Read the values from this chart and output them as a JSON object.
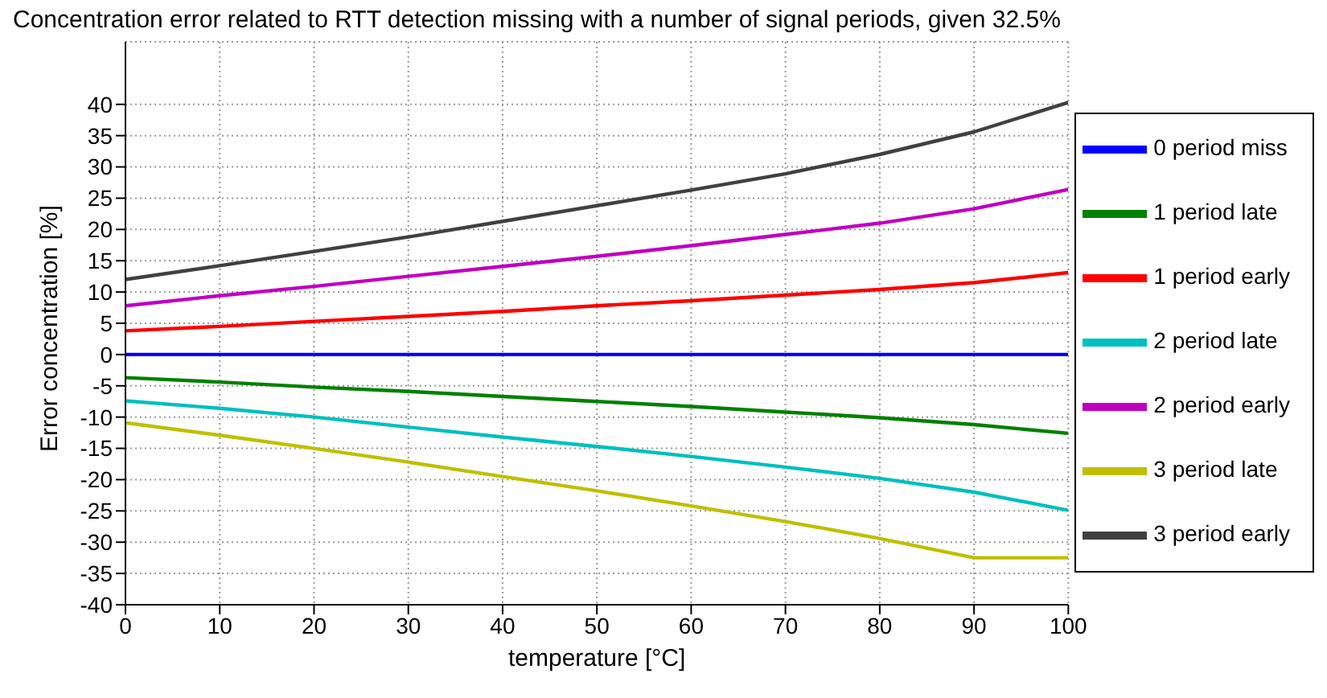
{
  "chart_data": {
    "type": "line",
    "title": "Concentration error related to RTT detection missing with a number of signal periods, given 32.5%",
    "xlabel": "temperature [°C]",
    "ylabel": "Error concentration [%]",
    "x": [
      0,
      10,
      20,
      30,
      40,
      50,
      60,
      70,
      80,
      90,
      100
    ],
    "series": [
      {
        "name": "0 period miss",
        "color": "#0000ff",
        "values": [
          0,
          0,
          0,
          0,
          0,
          0,
          0,
          0,
          0,
          0,
          0
        ]
      },
      {
        "name": "1 period late",
        "color": "#008000",
        "values": [
          -3.7,
          -4.4,
          -5.2,
          -5.9,
          -6.7,
          -7.5,
          -8.3,
          -9.2,
          -10.1,
          -11.2,
          -12.6
        ]
      },
      {
        "name": "1 period early",
        "color": "#ff0000",
        "values": [
          3.8,
          4.5,
          5.3,
          6.1,
          6.9,
          7.8,
          8.6,
          9.5,
          10.4,
          11.5,
          13.1
        ]
      },
      {
        "name": "2 period late",
        "color": "#00bfbf",
        "values": [
          -7.4,
          -8.6,
          -10.0,
          -11.6,
          -13.2,
          -14.7,
          -16.3,
          -18.0,
          -19.8,
          -22.0,
          -24.9
        ]
      },
      {
        "name": "2 period early",
        "color": "#bf00bf",
        "values": [
          7.8,
          9.4,
          10.9,
          12.5,
          14.1,
          15.7,
          17.4,
          19.2,
          21.0,
          23.3,
          26.4
        ]
      },
      {
        "name": "3 period late",
        "color": "#bfbf00",
        "values": [
          -10.9,
          -12.9,
          -15.0,
          -17.2,
          -19.5,
          -21.8,
          -24.2,
          -26.7,
          -29.4,
          -32.5,
          -32.5
        ]
      },
      {
        "name": "3 period early",
        "color": "#404040",
        "values": [
          12.0,
          14.2,
          16.5,
          18.8,
          21.3,
          23.8,
          26.3,
          28.9,
          32.0,
          35.6,
          40.3
        ]
      }
    ],
    "xlim": [
      0,
      100
    ],
    "xticks": [
      0,
      10,
      20,
      30,
      40,
      50,
      60,
      70,
      80,
      90,
      100
    ],
    "ylim": [
      -40,
      50
    ],
    "yticks": [
      -40,
      -35,
      -30,
      -25,
      -20,
      -15,
      -10,
      -5,
      0,
      5,
      10,
      15,
      20,
      25,
      30,
      35,
      40
    ],
    "grid": true,
    "legend": "right"
  }
}
